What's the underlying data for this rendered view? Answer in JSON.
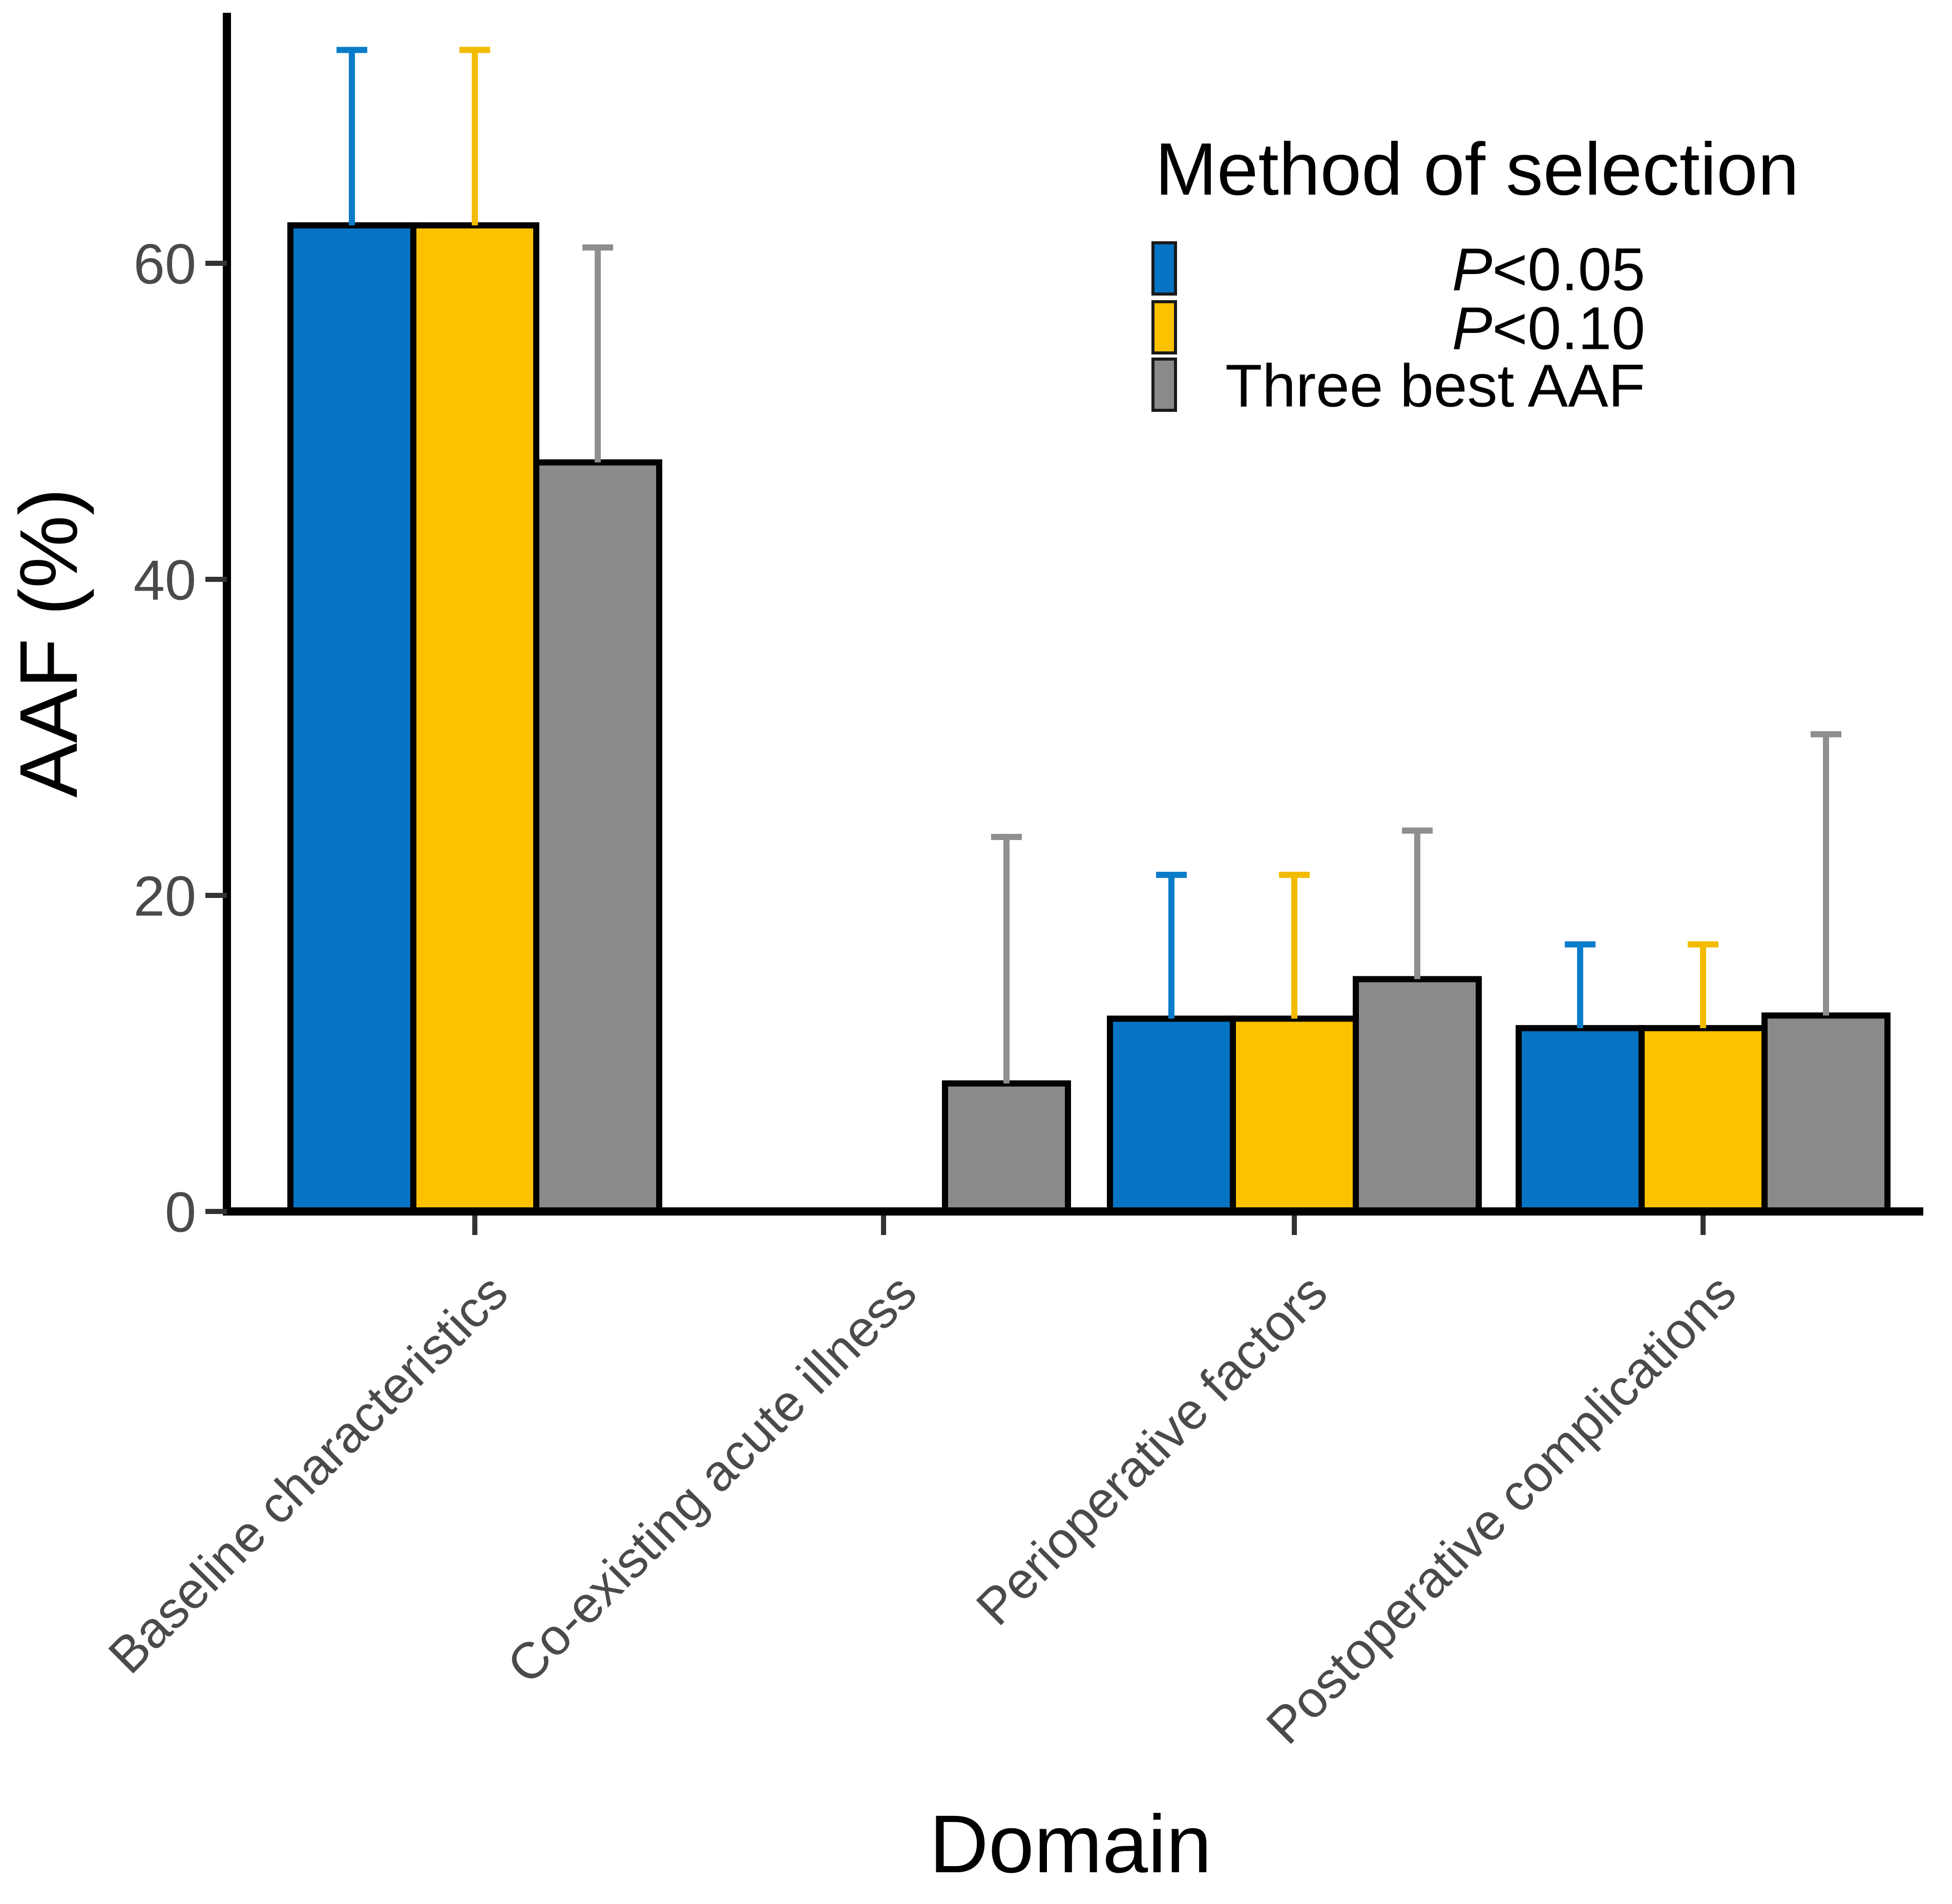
{
  "figure": {
    "background": "#ffffff",
    "kind": "grouped bar chart with upper error bars"
  },
  "chart_data": {
    "type": "bar",
    "title": "",
    "xlabel": "Domain",
    "ylabel": "AAF (%)",
    "ylim": [
      0,
      76
    ],
    "yticks": [
      0,
      20,
      40,
      60
    ],
    "grid": false,
    "legend_title": "Method of selection",
    "legend_position": "top-right-inside",
    "categories": [
      "Baseline characteristics",
      "Co-existing acute illness",
      "Perioperative factors",
      "Postoperative complications"
    ],
    "series": [
      {
        "name": "P<0.05",
        "italic_prefix": "P",
        "label_rest": "<0.05",
        "color": "#0674C3",
        "whisker_color": "#0A7CC9",
        "values": [
          62.4,
          0,
          12.2,
          11.6
        ],
        "error_upper": [
          73.5,
          null,
          21.3,
          16.9
        ]
      },
      {
        "name": "P<0.10",
        "italic_prefix": "P",
        "label_rest": "<0.10",
        "color": "#FCC200",
        "whisker_color": "#F2BB00",
        "values": [
          62.4,
          0,
          12.2,
          11.6
        ],
        "error_upper": [
          73.5,
          null,
          21.3,
          16.9
        ]
      },
      {
        "name": "Three best AAF",
        "italic_prefix": "",
        "label_rest": "Three best AAF",
        "color": "#8A8A8A",
        "whisker_color": "#8F8F8F",
        "values": [
          47.4,
          8.1,
          14.7,
          12.4
        ],
        "error_upper": [
          61.0,
          23.7,
          24.1,
          30.2
        ]
      }
    ],
    "bar_border_color": "#000000",
    "axis_color": "#000000",
    "tick_label_color": "#4A4A4A"
  }
}
